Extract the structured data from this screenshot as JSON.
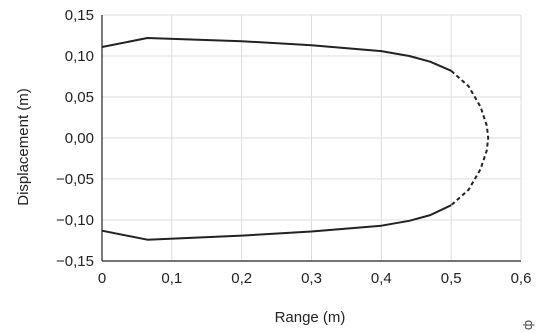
{
  "chart_data": {
    "type": "line",
    "xlabel": "Range (m)",
    "ylabel": "Displacement (m)",
    "xlim": [
      0,
      0.6
    ],
    "ylim": [
      -0.15,
      0.15
    ],
    "x_ticks": [
      "0",
      "0,1",
      "0,2",
      "0,3",
      "0,4",
      "0,5",
      "0,6"
    ],
    "y_ticks": [
      "0,15",
      "0,10",
      "0,05",
      "0,00",
      "−0,05",
      "−0,10",
      "−0,15"
    ],
    "grid": true,
    "legend": "none",
    "corner_mark": "ф",
    "series": [
      {
        "style": "solid",
        "color": "#222222",
        "points": [
          [
            0.0,
            0.111
          ],
          [
            0.065,
            0.122
          ],
          [
            0.2,
            0.118
          ],
          [
            0.3,
            0.113
          ],
          [
            0.4,
            0.106
          ],
          [
            0.44,
            0.1
          ],
          [
            0.47,
            0.093
          ],
          [
            0.5,
            0.082
          ]
        ]
      },
      {
        "style": "dashed",
        "color": "#222222",
        "points": [
          [
            0.5,
            0.082
          ],
          [
            0.525,
            0.063
          ],
          [
            0.542,
            0.038
          ],
          [
            0.551,
            0.015
          ],
          [
            0.553,
            0.0
          ],
          [
            0.551,
            -0.015
          ],
          [
            0.542,
            -0.038
          ],
          [
            0.525,
            -0.063
          ],
          [
            0.5,
            -0.082
          ]
        ]
      },
      {
        "style": "solid",
        "color": "#222222",
        "points": [
          [
            0.5,
            -0.082
          ],
          [
            0.47,
            -0.094
          ],
          [
            0.44,
            -0.101
          ],
          [
            0.4,
            -0.107
          ],
          [
            0.3,
            -0.114
          ],
          [
            0.2,
            -0.119
          ],
          [
            0.065,
            -0.124
          ],
          [
            0.0,
            -0.113
          ]
        ]
      }
    ]
  }
}
